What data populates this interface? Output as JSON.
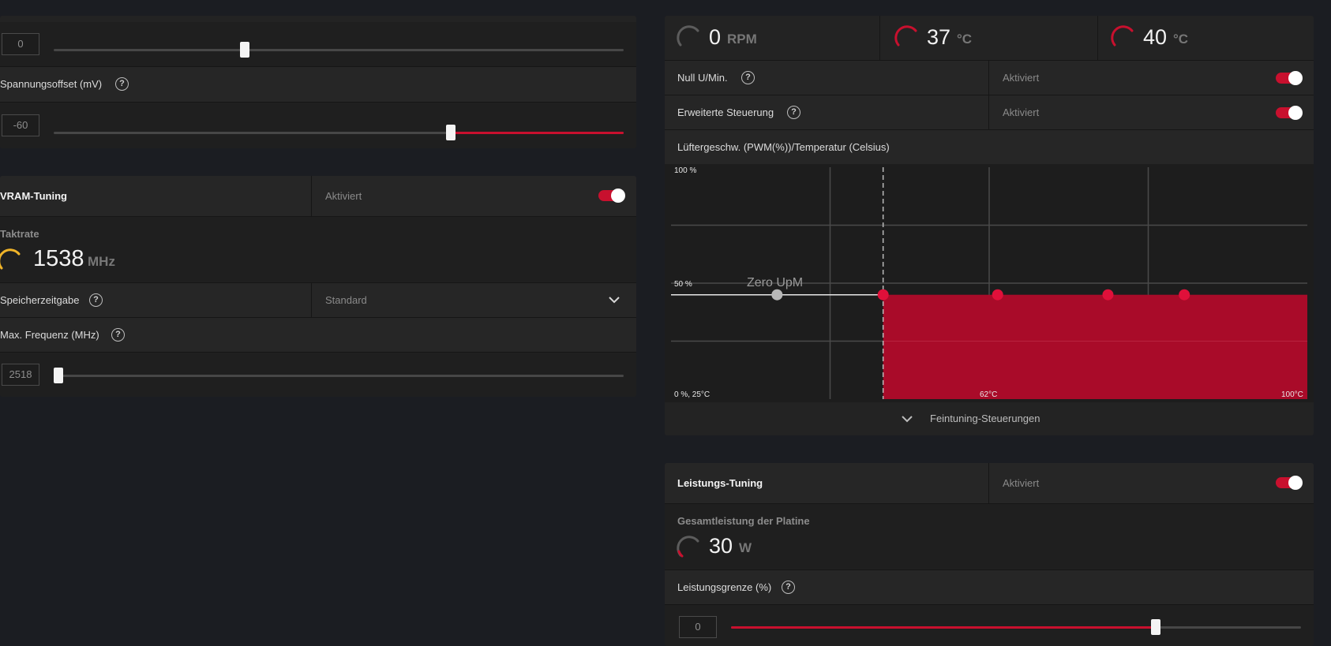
{
  "left_top": {
    "slider1": {
      "value": "0",
      "percent": 34
    },
    "voltage_offset": {
      "label": "Spannungsoffset (mV)",
      "help": "?",
      "value": "-60",
      "percent": 70
    }
  },
  "vram": {
    "title": "VRAM-Tuning",
    "status": "Aktiviert",
    "clock_label": "Taktrate",
    "clock_value": "1538",
    "clock_unit": "MHz",
    "memory_timing": {
      "label": "Speicherzeitgabe",
      "help": "?",
      "value": "Standard"
    },
    "max_freq": {
      "label": "Max. Frequenz (MHz)",
      "help": "?",
      "value": "2518",
      "percent": 1
    }
  },
  "fan": {
    "readouts": [
      {
        "value": "0",
        "unit": "RPM",
        "color": "#6a6a6a"
      },
      {
        "value": "37",
        "unit": "°C",
        "color": "#c8102e"
      },
      {
        "value": "40",
        "unit": "°C",
        "color": "#c8102e"
      }
    ],
    "zero_rpm": {
      "label": "Null U/Min.",
      "help": "?",
      "status": "Aktiviert"
    },
    "advanced": {
      "label": "Erweiterte Steuerung",
      "help": "?",
      "status": "Aktiviert"
    },
    "curve_title": "Lüftergeschw. (PWM(%))/Temperatur (Celsius)",
    "fine_tuning": "Feintuning-Steuerungen"
  },
  "chart_data": {
    "type": "area",
    "xlim": [
      25,
      100
    ],
    "ylim": [
      0,
      100
    ],
    "x_unit": "°C",
    "y_unit": "%",
    "axis_labels": {
      "y_top": "100 %",
      "y_mid": "50 %",
      "origin": "0 %, 25°C",
      "x_mid": "62°C",
      "x_max": "100°C"
    },
    "annotation": "Zero UpM",
    "zero_rpm_threshold": 50,
    "points": [
      {
        "x": 37.5,
        "y": 45,
        "active": false
      },
      {
        "x": 50,
        "y": 45,
        "active": true
      },
      {
        "x": 63.5,
        "y": 45,
        "active": true
      },
      {
        "x": 76.5,
        "y": 45,
        "active": true
      },
      {
        "x": 85.5,
        "y": 45,
        "active": true
      }
    ],
    "grid": true,
    "colors": {
      "fill": "#a90b29",
      "point": "#e0103a",
      "inactive_point": "#b8b8b8"
    }
  },
  "power": {
    "title": "Leistungs-Tuning",
    "status": "Aktiviert",
    "board_power_label": "Gesamtleistung der Platine",
    "board_power_value": "30",
    "board_power_unit": "W",
    "limit": {
      "label": "Leistungsgrenze (%)",
      "help": "?",
      "value": "0",
      "percent": 75
    }
  },
  "colors": {
    "accent": "#c8102e",
    "yellow_gauge": "#f0b429",
    "background": "#1b1d22"
  },
  "icons": {
    "chevron": "chevron-down-icon",
    "help": "help-circle-icon"
  }
}
